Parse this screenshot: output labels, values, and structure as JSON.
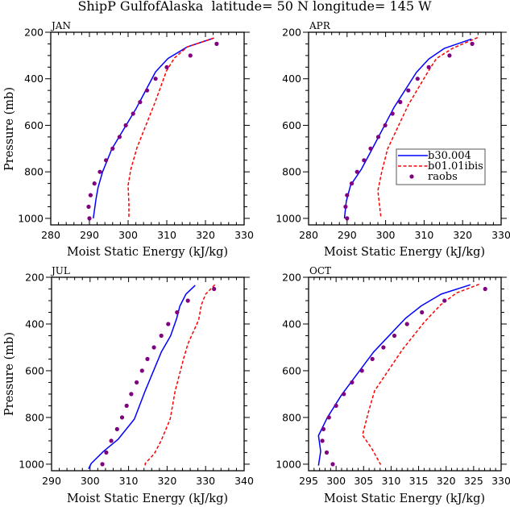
{
  "figure_title": "ShipP GulfofAlaska  latitude= 50 N longitude= 145 W",
  "legend": {
    "entries": [
      {
        "label": "b30.004",
        "color": "#0000ff",
        "style": "solid"
      },
      {
        "label": "b01.01ibis",
        "color": "#ff0000",
        "style": "dashed"
      },
      {
        "label": "raobs",
        "color": "#800080",
        "style": "marker"
      }
    ]
  },
  "chart_data": [
    {
      "type": "line",
      "title": "JAN",
      "xlabel": "Moist Static Energy (kJ/kg)",
      "ylabel": "Pressure (mb)",
      "xlim": [
        280,
        330
      ],
      "ylim": [
        200,
        1028
      ],
      "y_inverted": true,
      "xticks": [
        280,
        290,
        300,
        310,
        320,
        330
      ],
      "xtick_labels": [
        "280",
        "290",
        "300",
        "310",
        "320",
        "330"
      ],
      "x_minor_step": 2,
      "yticks": [
        200,
        400,
        600,
        800,
        1000
      ],
      "ytick_labels": [
        "200",
        "400",
        "600",
        "800",
        "1000"
      ],
      "show_ylabel": true,
      "series": [
        {
          "name": "b30.004",
          "color": "#0000ff",
          "style": "solid",
          "x": [
            322.2,
            315.3,
            310.3,
            307.1,
            302.0,
            295.8,
            293.4,
            292.2,
            291.7,
            291.0
          ],
          "y": [
            225,
            263,
            313,
            370,
            530,
            702,
            800,
            869,
            916,
            1000
          ]
        },
        {
          "name": "b01.01ibis",
          "color": "#ff0000",
          "style": "dashed",
          "x": [
            322.2,
            315.3,
            312.0,
            309.9,
            307.0,
            302.3,
            300.7,
            300.0,
            300.2,
            300.2
          ],
          "y": [
            225,
            263,
            310,
            367,
            500,
            696,
            789,
            858,
            938,
            1000
          ]
        },
        {
          "name": "raobs",
          "color": "#800080",
          "style": "marker",
          "x": [
            322.9,
            316.1,
            310.0,
            307.1,
            304.9,
            303.1,
            301.3,
            299.4,
            297.8,
            296.0,
            294.3,
            292.7,
            291.3,
            290.3,
            289.8,
            290.0
          ],
          "y": [
            250,
            300,
            350,
            400,
            450,
            500,
            550,
            600,
            650,
            700,
            750,
            800,
            850,
            900,
            950,
            1000
          ]
        }
      ]
    },
    {
      "type": "line",
      "title": "APR",
      "xlabel": "Moist Static Energy (kJ/kg)",
      "ylabel": "",
      "xlim": [
        280,
        330
      ],
      "ylim": [
        200,
        1028
      ],
      "y_inverted": true,
      "xticks": [
        280,
        290,
        300,
        310,
        320,
        330
      ],
      "xtick_labels": [
        "280",
        "290",
        "300",
        "310",
        "320",
        "330"
      ],
      "x_minor_step": 2,
      "yticks": [
        200,
        400,
        600,
        800,
        1000
      ],
      "ytick_labels": [
        "200",
        "400",
        "600",
        "800",
        "1000"
      ],
      "show_ylabel": false,
      "series": [
        {
          "name": "b30.004",
          "color": "#0000ff",
          "style": "solid",
          "x": [
            322.3,
            315.3,
            311.2,
            308.0,
            302.2,
            296.5,
            293.7,
            290.9,
            289.8,
            289.3
          ],
          "y": [
            229,
            269,
            315,
            373,
            523,
            702,
            789,
            858,
            927,
            1000
          ]
        },
        {
          "name": "b01.01ibis",
          "color": "#ff0000",
          "style": "dashed",
          "x": [
            323.9,
            317.4,
            313.2,
            311.1,
            305.9,
            300.5,
            299.0,
            298.0,
            298.8
          ],
          "y": [
            223,
            269,
            313,
            367,
            512,
            702,
            800,
            881,
            1000
          ]
        },
        {
          "name": "raobs",
          "color": "#800080",
          "style": "marker",
          "x": [
            322.5,
            316.6,
            311.2,
            308.3,
            305.9,
            303.8,
            301.8,
            299.9,
            298.1,
            296.1,
            294.4,
            292.6,
            291.2,
            290.0,
            289.6,
            290.0
          ],
          "y": [
            250,
            300,
            350,
            400,
            450,
            500,
            550,
            600,
            650,
            700,
            750,
            800,
            850,
            900,
            950,
            1000
          ]
        }
      ]
    },
    {
      "type": "line",
      "title": "JUL",
      "xlabel": "Moist Static Energy (kJ/kg)",
      "ylabel": "Pressure (mb)",
      "xlim": [
        290,
        340
      ],
      "ylim": [
        200,
        1028
      ],
      "y_inverted": true,
      "xticks": [
        290,
        300,
        310,
        320,
        330,
        340
      ],
      "xtick_labels": [
        "290",
        "300",
        "310",
        "320",
        "330",
        "340"
      ],
      "x_minor_step": 2,
      "yticks": [
        200,
        400,
        600,
        800,
        1000
      ],
      "ytick_labels": [
        "200",
        "400",
        "600",
        "800",
        "1000"
      ],
      "show_ylabel": true,
      "series": [
        {
          "name": "b30.004",
          "color": "#0000ff",
          "style": "solid",
          "x": [
            327.3,
            324.9,
            323.3,
            322.5,
            320.9,
            318.5,
            314.3,
            311.5,
            307.3,
            303.5,
            300.3,
            299.6
          ],
          "y": [
            234,
            272,
            324,
            376,
            451,
            520,
            686,
            807,
            893,
            945,
            997,
            1020
          ]
        },
        {
          "name": "b01.01ibis",
          "color": "#ff0000",
          "style": "dashed",
          "x": [
            332.4,
            330.0,
            328.9,
            328.2,
            325.4,
            324.4,
            322.1,
            320.8,
            318.5,
            316.7,
            314.3,
            314.3
          ],
          "y": [
            232,
            272,
            318,
            382,
            485,
            542,
            686,
            807,
            898,
            955,
            997,
            1014
          ]
        },
        {
          "name": "raobs",
          "color": "#800080",
          "style": "marker",
          "x": [
            332.2,
            325.4,
            322.6,
            320.3,
            318.5,
            316.6,
            314.9,
            313.5,
            312.1,
            310.7,
            309.5,
            308.3,
            307.0,
            305.5,
            304.2,
            303.2
          ],
          "y": [
            250,
            300,
            350,
            400,
            450,
            500,
            550,
            600,
            650,
            700,
            750,
            800,
            850,
            900,
            950,
            1000
          ]
        }
      ]
    },
    {
      "type": "line",
      "title": "OCT",
      "xlabel": "Moist Static Energy (kJ/kg)",
      "ylabel": "",
      "xlim": [
        295,
        330
      ],
      "ylim": [
        200,
        1028
      ],
      "y_inverted": true,
      "xticks": [
        295,
        300,
        305,
        310,
        315,
        320,
        325,
        330
      ],
      "xtick_labels": [
        "295",
        "300",
        "305",
        "310",
        "315",
        "320",
        "325",
        "330"
      ],
      "x_minor_step": 1,
      "yticks": [
        200,
        400,
        600,
        800,
        1000
      ],
      "ytick_labels": [
        "200",
        "400",
        "600",
        "800",
        "1000"
      ],
      "show_ylabel": false,
      "series": [
        {
          "name": "b30.004",
          "color": "#0000ff",
          "style": "solid",
          "x": [
            324.4,
            319.1,
            315.5,
            312.6,
            306.8,
            301.0,
            298.4,
            296.8,
            297.2,
            296.8
          ],
          "y": [
            232,
            272,
            322,
            376,
            520,
            703,
            801,
            878,
            945,
            1006
          ]
        },
        {
          "name": "b01.01ibis",
          "color": "#ff0000",
          "style": "dashed",
          "x": [
            326.0,
            321.9,
            319.0,
            316.0,
            312.1,
            307.0,
            305.8,
            304.8,
            306.5,
            308.1
          ],
          "y": [
            230,
            267,
            318,
            393,
            508,
            686,
            784,
            876,
            933,
            1002
          ]
        },
        {
          "name": "raobs",
          "color": "#800080",
          "style": "marker",
          "x": [
            327.1,
            319.7,
            315.6,
            312.9,
            310.6,
            308.6,
            306.6,
            304.7,
            302.9,
            301.4,
            300.0,
            298.7,
            297.7,
            297.5,
            298.3,
            299.4
          ],
          "y": [
            250,
            300,
            350,
            400,
            450,
            500,
            550,
            600,
            650,
            700,
            750,
            800,
            850,
            900,
            950,
            1000
          ]
        }
      ]
    }
  ]
}
